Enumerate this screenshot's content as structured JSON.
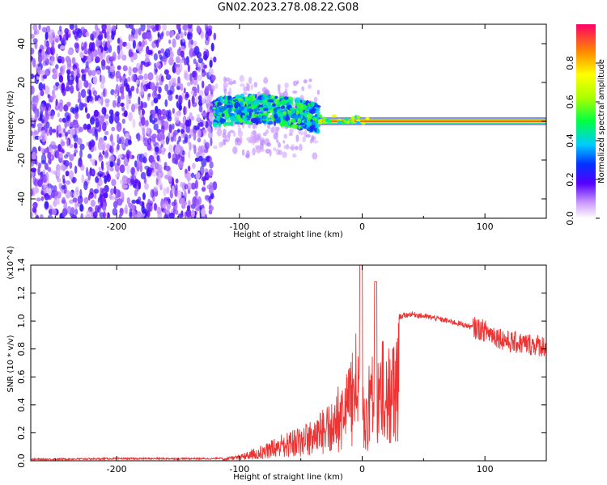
{
  "title": "GN02.2023.278.08.22.G08",
  "chart_data": [
    {
      "type": "heatmap",
      "xlabel": "Height of straight line (km)",
      "ylabel": "Frequency (Hz)",
      "xlim": [
        -270,
        150
      ],
      "ylim": [
        -50,
        50
      ],
      "xticks": [
        -200,
        -100,
        0,
        100
      ],
      "yticks": [
        -40,
        -20,
        0,
        20,
        40
      ],
      "colorbar": {
        "label": "Normalized spectral amplitude",
        "range": [
          0.0,
          1.0
        ],
        "ticks": [
          "0.0",
          "0.2",
          "0.4",
          "0.6",
          "0.8"
        ]
      },
      "regions": [
        {
          "x": [
            -270,
            -120
          ],
          "description_level": "low",
          "amplitude": 0.1
        },
        {
          "x": [
            -120,
            -35
          ],
          "freq_center": 5,
          "amplitude": 0.45
        },
        {
          "x": [
            -35,
            150
          ],
          "freq_center": 0,
          "amplitude": 0.9
        }
      ],
      "grid": false
    },
    {
      "type": "line",
      "xlabel": "Height of straight line (km)",
      "ylabel": "SNR (10 * v/v)",
      "multiplier": "(x10^4)",
      "xlim": [
        -270,
        150
      ],
      "ylim": [
        0,
        1.4
      ],
      "xticks": [
        -200,
        -100,
        0,
        100
      ],
      "yticks": [
        0.0,
        0.2,
        0.4,
        0.6,
        0.8,
        1.0,
        1.2,
        1.4
      ],
      "series": [
        {
          "color": "#ee3333",
          "x": [
            -270,
            -200,
            -120,
            -100,
            -80,
            -60,
            -40,
            -25,
            -10,
            -5,
            0,
            10,
            20,
            30,
            40,
            60,
            80,
            100,
            120,
            150
          ],
          "values": [
            0.01,
            0.015,
            0.015,
            0.04,
            0.12,
            0.22,
            0.3,
            0.45,
            0.7,
            0.95,
            0.6,
            0.8,
            0.92,
            1.03,
            1.05,
            1.02,
            0.98,
            0.93,
            0.85,
            0.82
          ]
        }
      ],
      "grid": false
    }
  ],
  "colors": {
    "line": "#ee3333",
    "axis": "#000000"
  }
}
